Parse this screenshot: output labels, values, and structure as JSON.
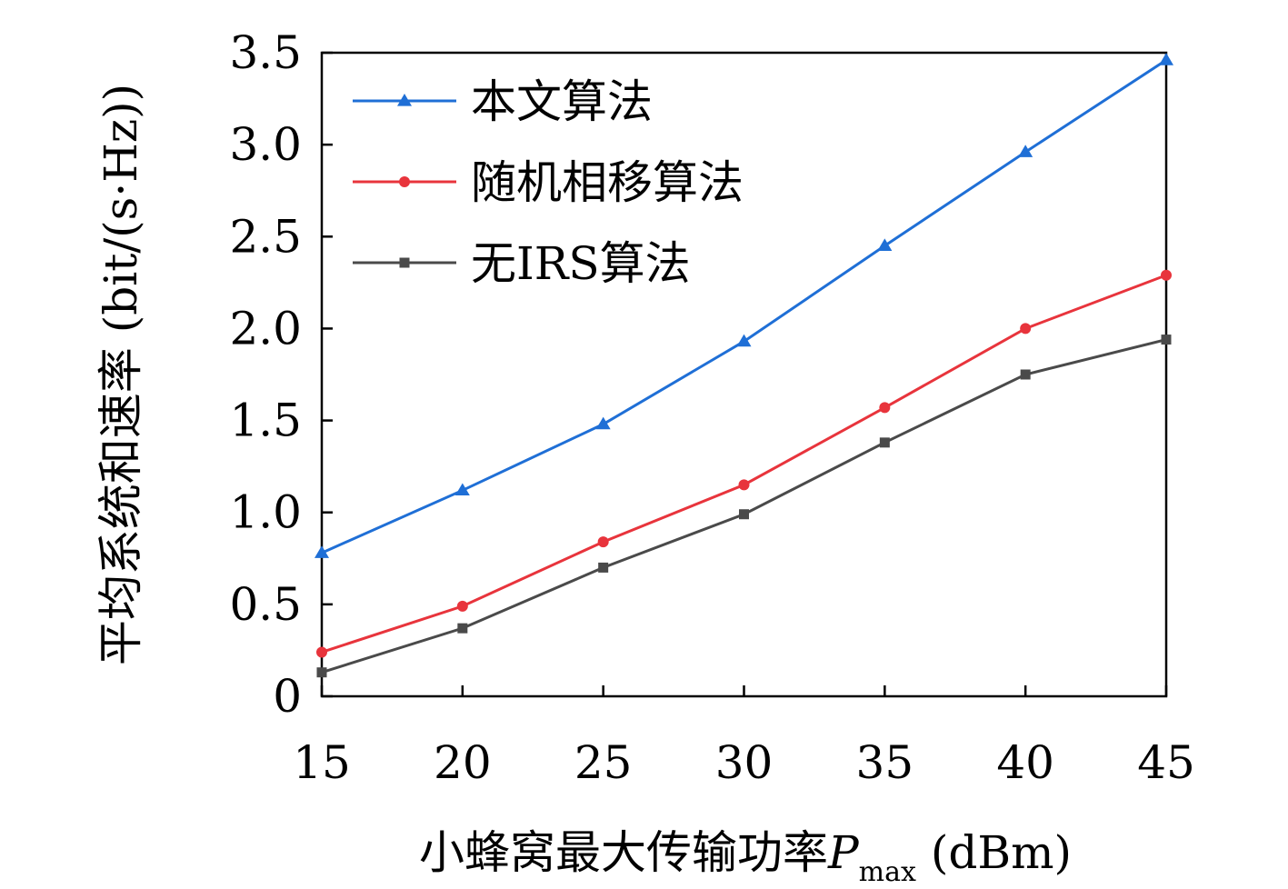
{
  "chart_data": {
    "type": "line",
    "xlabel": {
      "main": "小蜂窝最大传输功率",
      "var": "P",
      "sub": "max",
      "unit": " (dBm)"
    },
    "ylabel": "平均系统和速率 (bit/(s·Hz))",
    "x": [
      15,
      20,
      25,
      30,
      35,
      40,
      45
    ],
    "xlim": [
      15,
      45
    ],
    "ylim": [
      0,
      3.5
    ],
    "xticks": [
      "15",
      "20",
      "25",
      "30",
      "35",
      "40",
      "45"
    ],
    "yticks": [
      "0",
      "0.5",
      "1.0",
      "1.5",
      "2.0",
      "2.5",
      "3.0",
      "3.5"
    ],
    "grid": false,
    "legend_position": "top-left",
    "series": [
      {
        "name": "本文算法",
        "marker": "triangle",
        "color": "#1f6fd6",
        "values": [
          0.78,
          1.12,
          1.48,
          1.93,
          2.45,
          2.96,
          3.46
        ]
      },
      {
        "name": "随机相移算法",
        "marker": "circle",
        "color": "#e8343c",
        "values": [
          0.24,
          0.49,
          0.84,
          1.15,
          1.57,
          2.0,
          2.29
        ]
      },
      {
        "name": "无IRS算法",
        "marker": "square",
        "color": "#4a4a4a",
        "values": [
          0.13,
          0.37,
          0.7,
          0.99,
          1.38,
          1.75,
          1.94
        ]
      }
    ]
  }
}
